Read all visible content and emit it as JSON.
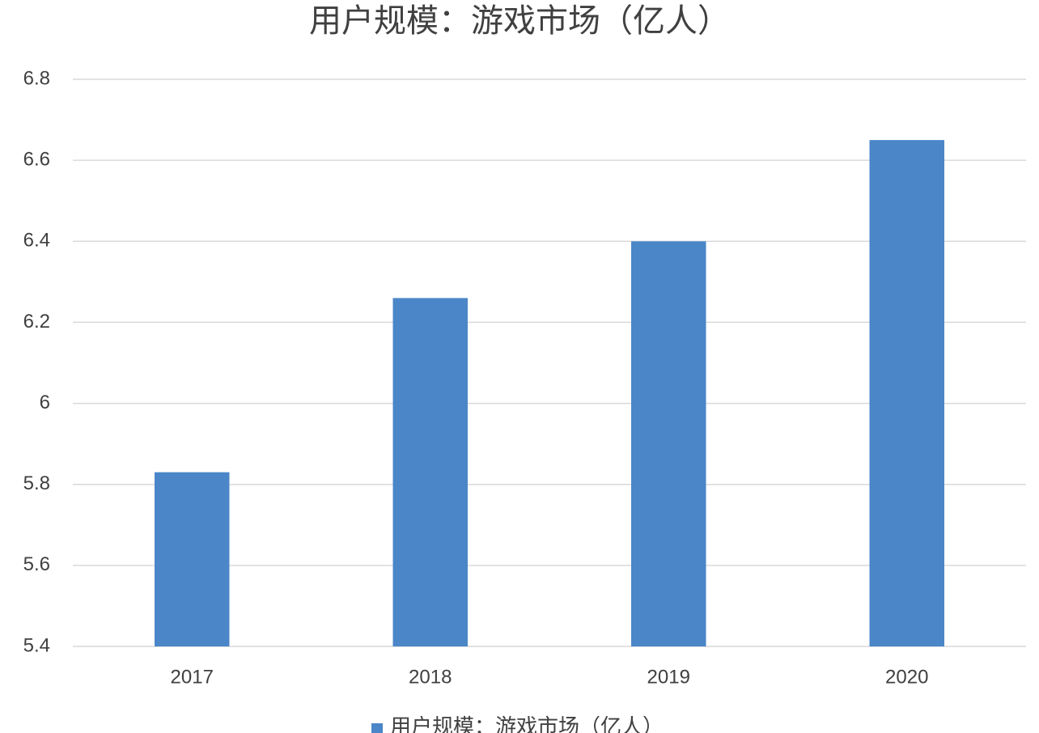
{
  "chart_data": {
    "type": "bar",
    "title": "用户规模：游戏市场（亿人）",
    "categories": [
      "2017",
      "2018",
      "2019",
      "2020"
    ],
    "series": [
      {
        "name": "用户规模：游戏市场（亿人）",
        "color": "#4a86c8",
        "values": [
          5.83,
          6.26,
          6.4,
          6.65
        ]
      }
    ],
    "ylim": [
      5.4,
      6.8
    ],
    "yticks": [
      5.4,
      5.6,
      5.8,
      6,
      6.2,
      6.4,
      6.6,
      6.8
    ],
    "grid": true,
    "legend": "bottom"
  }
}
